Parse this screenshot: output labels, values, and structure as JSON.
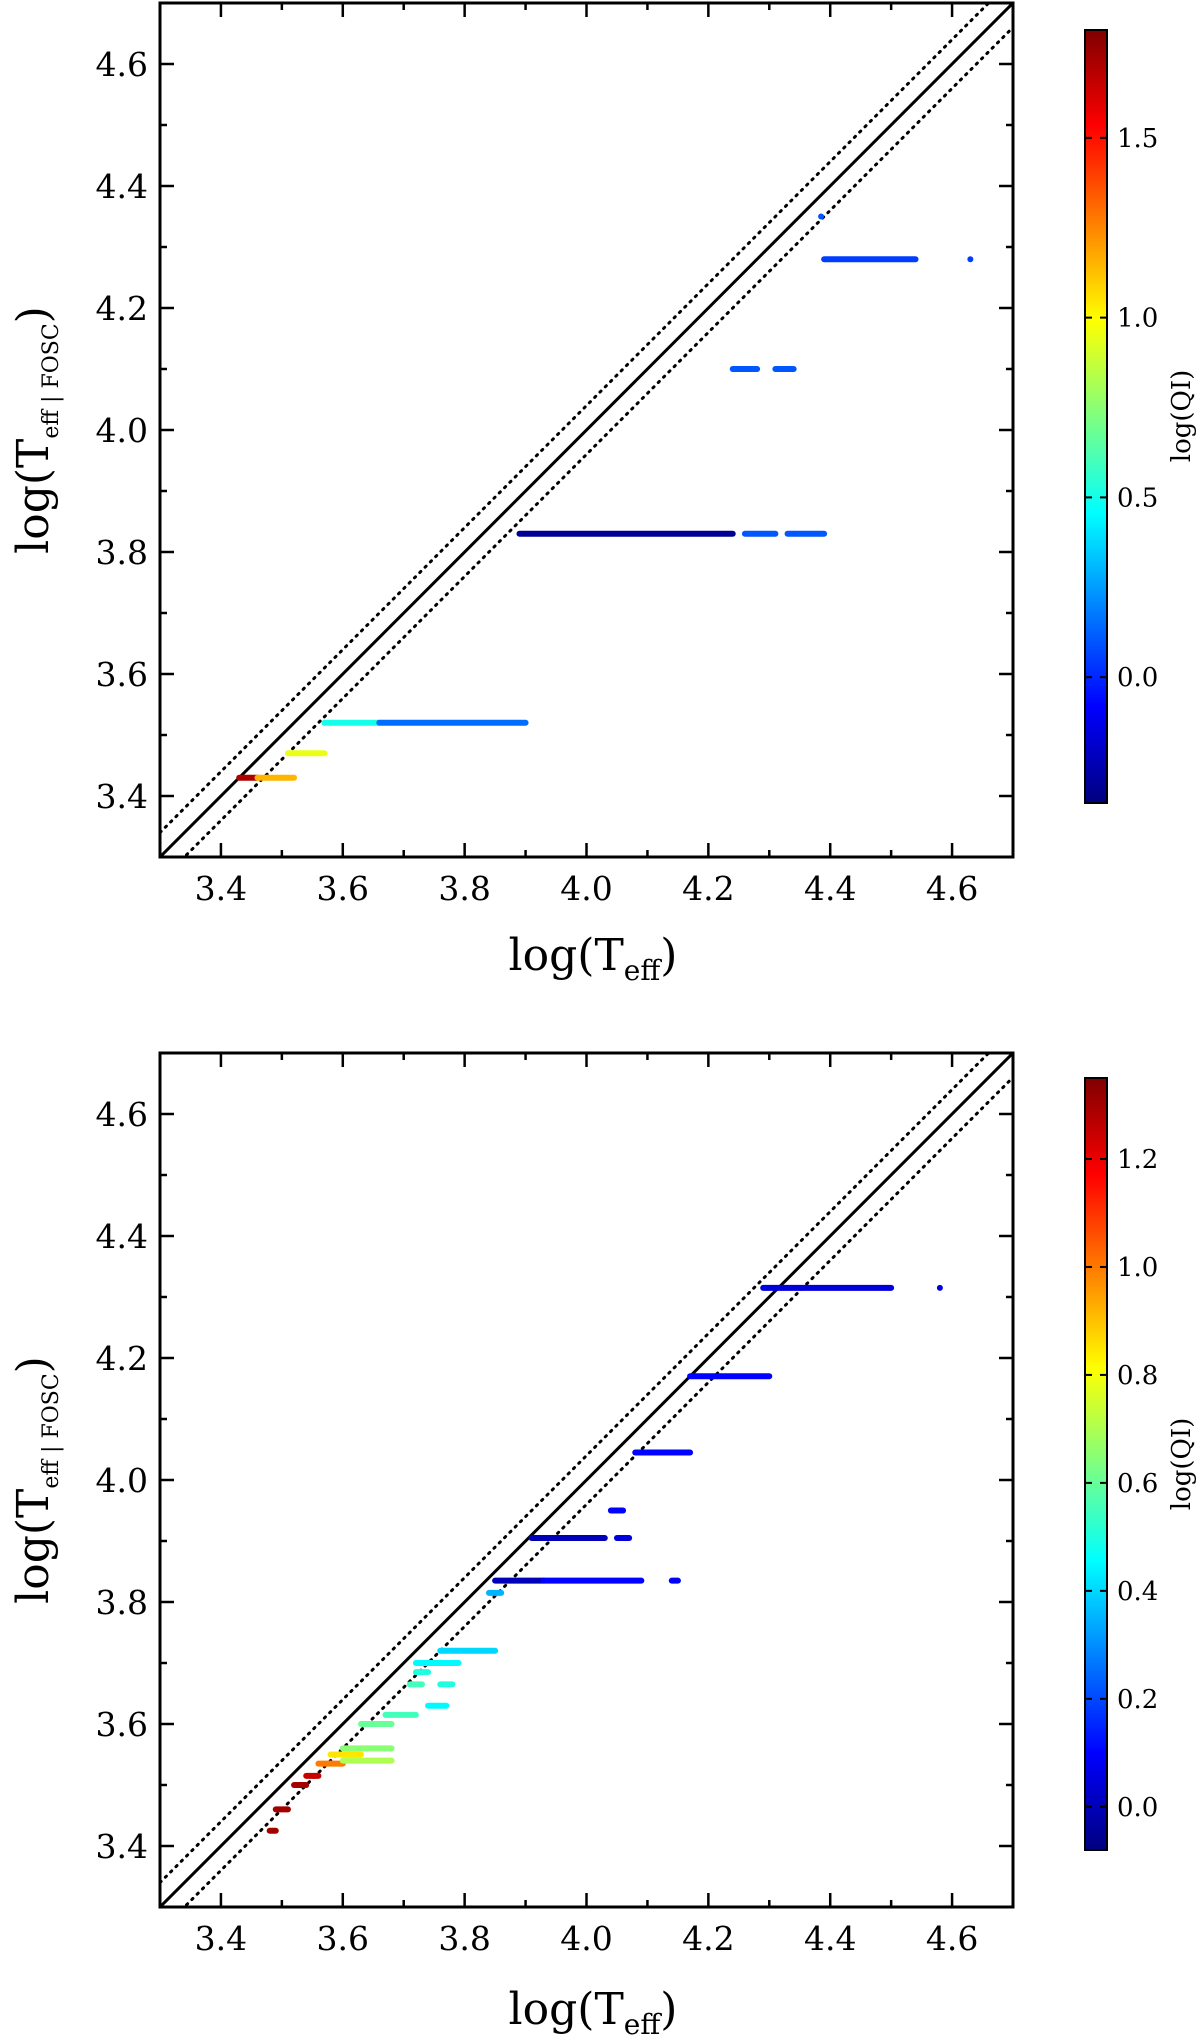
{
  "colormap": [
    "#00007f",
    "#0000ff",
    "#007fff",
    "#00ffff",
    "#7fff7f",
    "#ffff00",
    "#ff7f00",
    "#ff0000",
    "#7f0000"
  ],
  "chart_data": [
    {
      "type": "scatter",
      "title": "",
      "xlabel": "log(T_eff)",
      "ylabel": "log(T_eff | FOSC)",
      "xlabel_parts": {
        "main": "log(T",
        "sub": "eff",
        "close": ")"
      },
      "ylabel_parts": {
        "main": "log(T",
        "sub": "eff | FOSC",
        "close": ")"
      },
      "xlim": [
        3.3,
        4.7
      ],
      "ylim": [
        3.3,
        4.7
      ],
      "xticks": [
        "3.4",
        "3.6",
        "3.8",
        "4.0",
        "4.2",
        "4.4",
        "4.6"
      ],
      "yticks": [
        "3.4",
        "3.6",
        "3.8",
        "4.0",
        "4.2",
        "4.4",
        "4.6"
      ],
      "reference_lines": [
        {
          "name": "one-to-one",
          "style": "solid",
          "offset": 0.0
        },
        {
          "name": "upper bound",
          "style": "dotted",
          "offset": 0.04
        },
        {
          "name": "lower bound",
          "style": "dotted",
          "offset": -0.04
        }
      ],
      "colorbar": {
        "label": "log(QI)",
        "range": [
          -0.35,
          1.8
        ],
        "ticks": [
          "0.0",
          "0.5",
          "1.0",
          "1.5"
        ]
      },
      "series": [
        {
          "name": "y=3.43 red",
          "y": 3.43,
          "x_start": 3.43,
          "x_end": 3.46,
          "log_qi": 1.7
        },
        {
          "name": "y=3.43 yellow",
          "y": 3.43,
          "x_start": 3.46,
          "x_end": 3.52,
          "log_qi": 1.15
        },
        {
          "name": "y=3.47",
          "y": 3.47,
          "x_start": 3.51,
          "x_end": 3.57,
          "log_qi": 0.95
        },
        {
          "name": "y=3.52 cyan",
          "y": 3.52,
          "x_start": 3.57,
          "x_end": 3.66,
          "log_qi": 0.5
        },
        {
          "name": "y=3.52 blue",
          "y": 3.52,
          "x_start": 3.66,
          "x_end": 3.9,
          "log_qi": 0.15
        },
        {
          "name": "y=3.83 dense",
          "y": 3.83,
          "x_start": 3.89,
          "x_end": 4.24,
          "log_qi": -0.3
        },
        {
          "name": "y=3.83 gap 1",
          "y": 3.83,
          "x_start": 4.26,
          "x_end": 4.31,
          "log_qi": 0.1
        },
        {
          "name": "y=3.83 gap 2",
          "y": 3.83,
          "x_start": 4.33,
          "x_end": 4.39,
          "log_qi": 0.1
        },
        {
          "name": "y=4.10 a",
          "y": 4.1,
          "x_start": 4.24,
          "x_end": 4.28,
          "log_qi": 0.1
        },
        {
          "name": "y=4.10 b",
          "y": 4.1,
          "x_start": 4.31,
          "x_end": 4.34,
          "log_qi": 0.1
        },
        {
          "name": "y=4.28",
          "y": 4.28,
          "x_start": 4.39,
          "x_end": 4.54,
          "log_qi": 0.05
        },
        {
          "name": "y=4.28 outlier",
          "y": 4.28,
          "x_start": 4.63,
          "x_end": 4.63,
          "log_qi": 0.05
        },
        {
          "name": "y=4.35 point",
          "y": 4.35,
          "x_start": 4.385,
          "x_end": 4.385,
          "log_qi": 0.1
        }
      ]
    },
    {
      "type": "scatter",
      "title": "",
      "xlabel": "log(T_eff)",
      "ylabel": "log(T_eff | FOSC)",
      "xlabel_parts": {
        "main": "log(T",
        "sub": "eff",
        "close": ")"
      },
      "ylabel_parts": {
        "main": "log(T",
        "sub": "eff | FOSC",
        "close": ")"
      },
      "xlim": [
        3.3,
        4.7
      ],
      "ylim": [
        3.3,
        4.7
      ],
      "xticks": [
        "3.4",
        "3.6",
        "3.8",
        "4.0",
        "4.2",
        "4.4",
        "4.6"
      ],
      "yticks": [
        "3.4",
        "3.6",
        "3.8",
        "4.0",
        "4.2",
        "4.4",
        "4.6"
      ],
      "reference_lines": [
        {
          "name": "one-to-one",
          "style": "solid",
          "offset": 0.0
        },
        {
          "name": "upper bound",
          "style": "dotted",
          "offset": 0.04
        },
        {
          "name": "lower bound",
          "style": "dotted",
          "offset": -0.04
        }
      ],
      "colorbar": {
        "label": "log(QI)",
        "range": [
          -0.08,
          1.35
        ],
        "ticks": [
          "0.0",
          "0.2",
          "0.4",
          "0.6",
          "0.8",
          "1.0",
          "1.2"
        ]
      },
      "series": [
        {
          "name": "y=3.425",
          "y": 3.425,
          "x_start": 3.48,
          "x_end": 3.49,
          "log_qi": 1.3
        },
        {
          "name": "y=3.46",
          "y": 3.46,
          "x_start": 3.49,
          "x_end": 3.51,
          "log_qi": 1.3
        },
        {
          "name": "y=3.50",
          "y": 3.5,
          "x_start": 3.52,
          "x_end": 3.54,
          "log_qi": 1.3
        },
        {
          "name": "y=3.515",
          "y": 3.515,
          "x_start": 3.54,
          "x_end": 3.56,
          "log_qi": 1.25
        },
        {
          "name": "y=3.535 orange",
          "y": 3.535,
          "x_start": 3.56,
          "x_end": 3.6,
          "log_qi": 1.0
        },
        {
          "name": "y=3.54 lime",
          "y": 3.54,
          "x_start": 3.6,
          "x_end": 3.68,
          "log_qi": 0.7
        },
        {
          "name": "y=3.55 yellow",
          "y": 3.55,
          "x_start": 3.58,
          "x_end": 3.63,
          "log_qi": 0.85
        },
        {
          "name": "y=3.56",
          "y": 3.56,
          "x_start": 3.6,
          "x_end": 3.68,
          "log_qi": 0.65
        },
        {
          "name": "y=3.60",
          "y": 3.6,
          "x_start": 3.63,
          "x_end": 3.68,
          "log_qi": 0.6
        },
        {
          "name": "y=3.615",
          "y": 3.615,
          "x_start": 3.67,
          "x_end": 3.72,
          "log_qi": 0.55
        },
        {
          "name": "y=3.63",
          "y": 3.63,
          "x_start": 3.74,
          "x_end": 3.77,
          "log_qi": 0.45
        },
        {
          "name": "y=3.665",
          "y": 3.665,
          "x_start": 3.71,
          "x_end": 3.73,
          "log_qi": 0.55
        },
        {
          "name": "y=3.665 b",
          "y": 3.665,
          "x_start": 3.76,
          "x_end": 3.78,
          "log_qi": 0.5
        },
        {
          "name": "y=3.685",
          "y": 3.685,
          "x_start": 3.72,
          "x_end": 3.74,
          "log_qi": 0.5
        },
        {
          "name": "y=3.70",
          "y": 3.7,
          "x_start": 3.72,
          "x_end": 3.79,
          "log_qi": 0.45
        },
        {
          "name": "y=3.72",
          "y": 3.72,
          "x_start": 3.76,
          "x_end": 3.85,
          "log_qi": 0.4
        },
        {
          "name": "y=3.815",
          "y": 3.815,
          "x_start": 3.84,
          "x_end": 3.86,
          "log_qi": 0.35
        },
        {
          "name": "y=3.835 dense",
          "y": 3.835,
          "x_start": 3.85,
          "x_end": 3.93,
          "log_qi": 0.0
        },
        {
          "name": "y=3.835 sparse",
          "y": 3.835,
          "x_start": 3.93,
          "x_end": 4.09,
          "log_qi": 0.1
        },
        {
          "name": "y=3.835 outlier",
          "y": 3.835,
          "x_start": 4.14,
          "x_end": 4.15,
          "log_qi": 0.1
        },
        {
          "name": "y=3.905",
          "y": 3.905,
          "x_start": 3.91,
          "x_end": 4.03,
          "log_qi": 0.0
        },
        {
          "name": "y=3.905 b",
          "y": 3.905,
          "x_start": 4.05,
          "x_end": 4.07,
          "log_qi": 0.05
        },
        {
          "name": "y=3.95",
          "y": 3.95,
          "x_start": 4.04,
          "x_end": 4.06,
          "log_qi": 0.1
        },
        {
          "name": "y=4.045",
          "y": 4.045,
          "x_start": 4.08,
          "x_end": 4.17,
          "log_qi": 0.1
        },
        {
          "name": "y=4.17",
          "y": 4.17,
          "x_start": 4.17,
          "x_end": 4.3,
          "log_qi": 0.1
        },
        {
          "name": "y=4.315",
          "y": 4.315,
          "x_start": 4.29,
          "x_end": 4.5,
          "log_qi": 0.05
        },
        {
          "name": "y=4.315 outlier",
          "y": 4.315,
          "x_start": 4.58,
          "x_end": 4.58,
          "log_qi": 0.05
        }
      ]
    }
  ]
}
